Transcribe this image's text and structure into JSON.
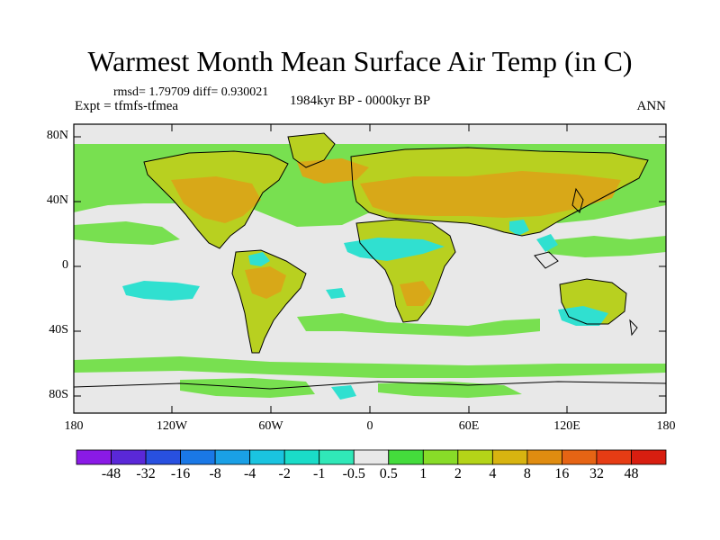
{
  "title": "Warmest Month Mean Surface Air Temp (in C)",
  "stats": "rmsd= 1.79709 diff= 0.930021",
  "experiment": "Expt = tfmfs-tfmea",
  "period": "1984kyr BP - 0000kyr BP",
  "season": "ANN",
  "lat_ticks": [
    "80N",
    "40N",
    "0",
    "40S",
    "80S"
  ],
  "lon_ticks": [
    "180",
    "120W",
    "60W",
    "0",
    "60E",
    "120E",
    "180"
  ],
  "colorbar": {
    "labels": [
      "-48",
      "-32",
      "-16",
      "-8",
      "-4",
      "-2",
      "-1",
      "-0.5",
      "0.5",
      "1",
      "2",
      "4",
      "8",
      "16",
      "32",
      "48"
    ],
    "colors": [
      "#8a1ae6",
      "#5a28d8",
      "#2850e0",
      "#1a78e6",
      "#1aa0e6",
      "#1ac4e0",
      "#1adcc8",
      "#30e8b8",
      "#e8e8e8",
      "#44dc3c",
      "#88dc28",
      "#b4d418",
      "#d8b410",
      "#e08c10",
      "#e66414",
      "#e63c14",
      "#d81e10"
    ]
  },
  "map_colors": {
    "ocean_neutral": "#e8e8e8",
    "ocean_warm_light": "#78e050",
    "land_warm": "#b8d020",
    "land_hot": "#d8a818",
    "cool": "#30e0d0"
  }
}
